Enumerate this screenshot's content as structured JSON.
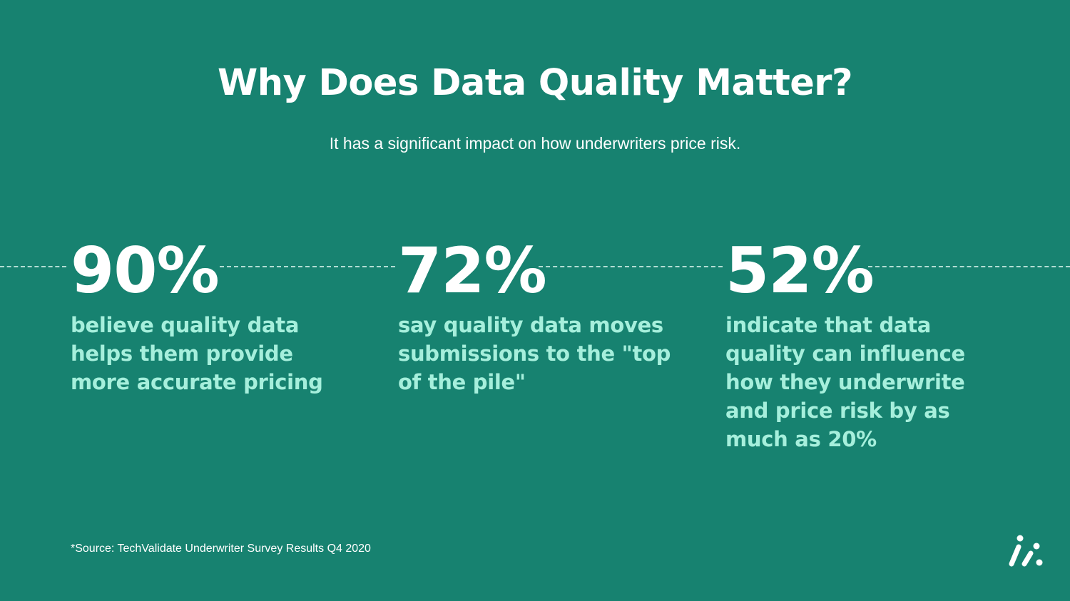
{
  "slide": {
    "title": "Why Does Data Quality Matter?",
    "subtitle": "It has a significant impact on how underwriters price risk.",
    "stats": [
      {
        "value": "90%",
        "description": "believe quality data helps them provide more accurate pricing"
      },
      {
        "value": "72%",
        "description": "say quality data moves submissions to the \"top of the pile\""
      },
      {
        "value": "52%",
        "description": "indicate that data quality can influence how they underwrite and price risk by as much as 20%"
      }
    ],
    "source": "*Source: TechValidate Underwriter Survey Results Q4 2020",
    "logo_icon": "brand-logo-icon"
  },
  "colors": {
    "background": "#178270",
    "title": "#ffffff",
    "stat_value": "#ffffff",
    "stat_description": "#a6efdc",
    "dashed_line": "#ceece4"
  }
}
